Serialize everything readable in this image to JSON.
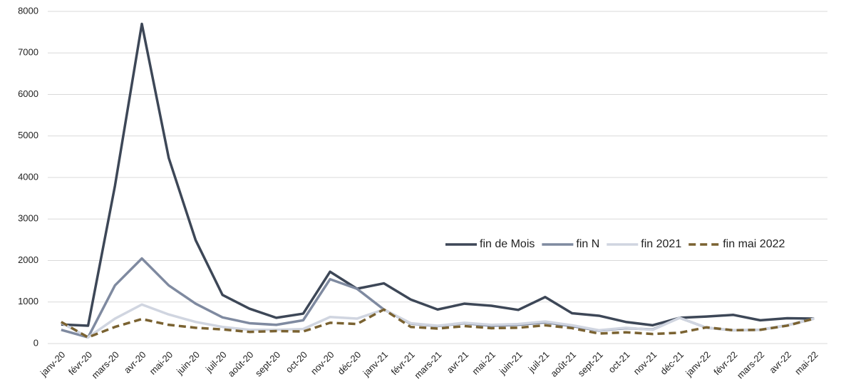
{
  "chart_data": {
    "type": "line",
    "categories": [
      "janv-20",
      "févr-20",
      "mars-20",
      "avr-20",
      "mai-20",
      "juin-20",
      "juil-20",
      "août-20",
      "sept-20",
      "oct-20",
      "nov-20",
      "déc-20",
      "janv-21",
      "févr-21",
      "mars-21",
      "avr-21",
      "mai-21",
      "juin-21",
      "juil-21",
      "août-21",
      "sept-21",
      "oct-21",
      "nov-21",
      "déc-21",
      "janv-22",
      "févr-22",
      "mars-22",
      "avr-22",
      "mai-22"
    ],
    "series": [
      {
        "name": "fin de Mois",
        "color": "#3d4757",
        "values": [
          460,
          430,
          3800,
          7700,
          4470,
          2490,
          1170,
          840,
          620,
          720,
          1730,
          1320,
          1450,
          1060,
          820,
          960,
          910,
          810,
          1120,
          730,
          670,
          520,
          440,
          620,
          650,
          690,
          560,
          610,
          600
        ]
      },
      {
        "name": "fin N",
        "color": "#7f8aa0",
        "values": [
          330,
          150,
          1400,
          2050,
          1400,
          960,
          630,
          490,
          450,
          560,
          1550,
          1320,
          820,
          480,
          420,
          490,
          430,
          450,
          510,
          420,
          310,
          370,
          340,
          620,
          380,
          320,
          330,
          440,
          600
        ]
      },
      {
        "name": "fin 2021",
        "color": "#d0d5e0",
        "values": [
          500,
          150,
          600,
          940,
          700,
          520,
          400,
          330,
          330,
          350,
          640,
          600,
          820,
          490,
          430,
          500,
          450,
          470,
          530,
          440,
          320,
          380,
          330,
          620,
          380,
          320,
          330,
          440,
          600
        ]
      },
      {
        "name": "fin mai 2022",
        "color": "#7a6231",
        "dashed": true,
        "values": [
          520,
          150,
          400,
          590,
          450,
          380,
          340,
          280,
          300,
          290,
          500,
          470,
          820,
          400,
          360,
          420,
          370,
          380,
          440,
          370,
          240,
          270,
          230,
          260,
          390,
          320,
          330,
          430,
          600
        ]
      }
    ],
    "ylim": [
      0,
      8000
    ],
    "yticks": [
      0,
      1000,
      2000,
      3000,
      4000,
      5000,
      6000,
      7000,
      8000
    ],
    "grid": true,
    "legend": "right"
  }
}
